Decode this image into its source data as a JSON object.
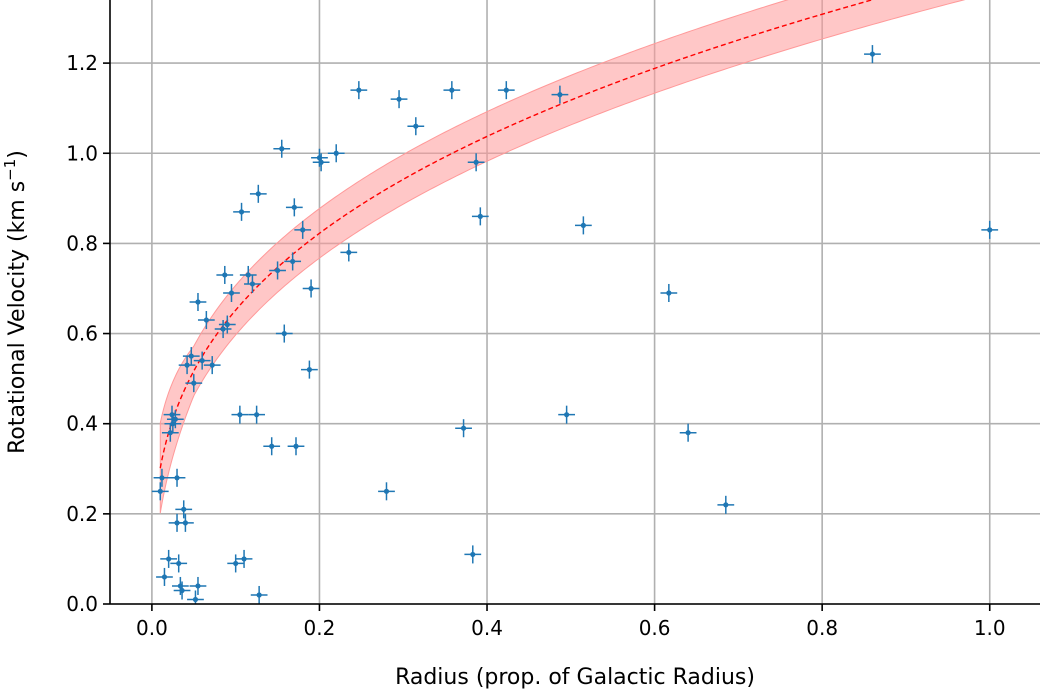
{
  "chart_data": {
    "type": "scatter",
    "xlabel": "Radius (prop. of Galactic Radius)",
    "ylabel": "Rotational Velocity (km s",
    "ylabel_sup": "−1",
    "ylabel_end": ")",
    "xlim": [
      -0.05,
      1.06
    ],
    "ylim": [
      0,
      1.34
    ],
    "x_ticks": [
      0.0,
      0.2,
      0.4,
      0.6,
      0.8,
      1.0
    ],
    "x_tick_labels": [
      "0.0",
      "0.2",
      "0.4",
      "0.6",
      "0.8",
      "1.0"
    ],
    "y_ticks": [
      0.0,
      0.2,
      0.4,
      0.6,
      0.8,
      1.0,
      1.2
    ],
    "y_tick_labels": [
      "0.0",
      "0.2",
      "0.4",
      "0.6",
      "0.8",
      "1.0",
      "1.2"
    ],
    "grid": true,
    "colors": {
      "points": "#1f77b4",
      "fit_line": "#ff0000",
      "band": "#ff9999"
    },
    "error": {
      "x": 0.01,
      "y": 0.02
    },
    "fit": {
      "form": "power-law",
      "x_start": 0.01,
      "a": 1.41,
      "b": 0.335,
      "band_halfwidth": 0.055,
      "band_halfwidth_at_start": 0.1
    },
    "points": [
      [
        0.01,
        0.25
      ],
      [
        0.012,
        0.28
      ],
      [
        0.015,
        0.06
      ],
      [
        0.02,
        0.1
      ],
      [
        0.022,
        0.38
      ],
      [
        0.024,
        0.42
      ],
      [
        0.025,
        0.4
      ],
      [
        0.028,
        0.41
      ],
      [
        0.03,
        0.28
      ],
      [
        0.03,
        0.18
      ],
      [
        0.032,
        0.09
      ],
      [
        0.034,
        0.04
      ],
      [
        0.036,
        0.03
      ],
      [
        0.038,
        0.21
      ],
      [
        0.04,
        0.18
      ],
      [
        0.042,
        0.53
      ],
      [
        0.047,
        0.55
      ],
      [
        0.05,
        0.49
      ],
      [
        0.052,
        0.01
      ],
      [
        0.055,
        0.67
      ],
      [
        0.055,
        0.04
      ],
      [
        0.06,
        0.54
      ],
      [
        0.065,
        0.63
      ],
      [
        0.072,
        0.53
      ],
      [
        0.085,
        0.61
      ],
      [
        0.087,
        0.73
      ],
      [
        0.09,
        0.62
      ],
      [
        0.095,
        0.69
      ],
      [
        0.1,
        0.09
      ],
      [
        0.105,
        0.42
      ],
      [
        0.107,
        0.87
      ],
      [
        0.11,
        0.1
      ],
      [
        0.115,
        0.73
      ],
      [
        0.12,
        0.71
      ],
      [
        0.125,
        0.42
      ],
      [
        0.127,
        0.91
      ],
      [
        0.128,
        0.02
      ],
      [
        0.143,
        0.35
      ],
      [
        0.15,
        0.74
      ],
      [
        0.155,
        1.01
      ],
      [
        0.158,
        0.6
      ],
      [
        0.168,
        0.76
      ],
      [
        0.17,
        0.88
      ],
      [
        0.172,
        0.35
      ],
      [
        0.18,
        0.83
      ],
      [
        0.188,
        0.52
      ],
      [
        0.19,
        0.7
      ],
      [
        0.2,
        0.99
      ],
      [
        0.202,
        0.98
      ],
      [
        0.22,
        1.0
      ],
      [
        0.235,
        0.78
      ],
      [
        0.247,
        1.14
      ],
      [
        0.28,
        0.25
      ],
      [
        0.295,
        1.12
      ],
      [
        0.315,
        1.06
      ],
      [
        0.358,
        1.14
      ],
      [
        0.372,
        0.39
      ],
      [
        0.383,
        0.11
      ],
      [
        0.387,
        0.98
      ],
      [
        0.392,
        0.86
      ],
      [
        0.423,
        1.14
      ],
      [
        0.487,
        1.13
      ],
      [
        0.495,
        0.42
      ],
      [
        0.515,
        0.84
      ],
      [
        0.617,
        0.69
      ],
      [
        0.64,
        0.38
      ],
      [
        0.685,
        0.22
      ],
      [
        0.86,
        1.22
      ],
      [
        1.0,
        0.83
      ]
    ]
  }
}
